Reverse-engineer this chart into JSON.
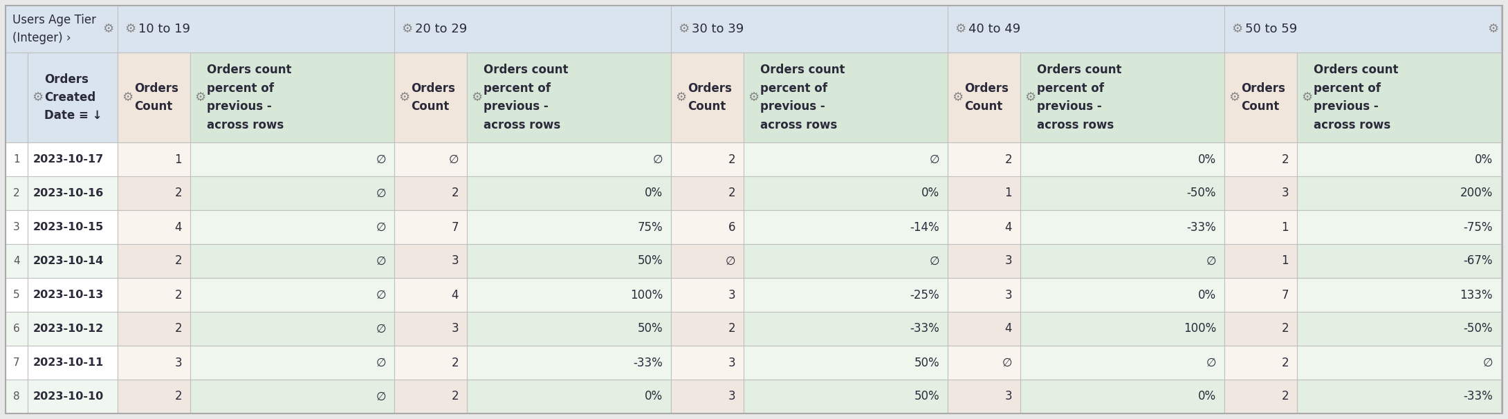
{
  "title_row": {
    "col0_line1": "Users Age Tier",
    "col0_line2": "(Integer) ›",
    "groups": [
      "10 to 19",
      "20 to 29",
      "30 to 39",
      "40 to 49",
      "50 to 59"
    ]
  },
  "header_col0": "Orders\nCreated\nDate ↧",
  "rows": [
    [
      1,
      "2023-10-17",
      "1",
      "∅",
      "∅",
      "∅",
      "2",
      "∅",
      "2",
      "0%",
      "2",
      "0%"
    ],
    [
      2,
      "2023-10-16",
      "2",
      "∅",
      "2",
      "0%",
      "2",
      "0%",
      "1",
      "-50%",
      "3",
      "200%"
    ],
    [
      3,
      "2023-10-15",
      "4",
      "∅",
      "7",
      "75%",
      "6",
      "-14%",
      "4",
      "-33%",
      "1",
      "-75%"
    ],
    [
      4,
      "2023-10-14",
      "2",
      "∅",
      "3",
      "50%",
      "∅",
      "∅",
      "3",
      "∅",
      "1",
      "-67%"
    ],
    [
      5,
      "2023-10-13",
      "2",
      "∅",
      "4",
      "100%",
      "3",
      "-25%",
      "3",
      "0%",
      "7",
      "133%"
    ],
    [
      6,
      "2023-10-12",
      "2",
      "∅",
      "3",
      "50%",
      "2",
      "-33%",
      "4",
      "100%",
      "2",
      "-50%"
    ],
    [
      7,
      "2023-10-11",
      "3",
      "∅",
      "2",
      "-33%",
      "3",
      "50%",
      "∅",
      "∅",
      "2",
      "∅"
    ],
    [
      8,
      "2023-10-10",
      "2",
      "∅",
      "2",
      "0%",
      "3",
      "50%",
      "3",
      "0%",
      "2",
      "-33%"
    ]
  ],
  "colors": {
    "title_bg": "#d9e4ef",
    "header_bg": "#d9e4ef",
    "header_count_bg": "#f0e6dc",
    "header_pct_bg": "#d8e8d8",
    "data_white": "#ffffff",
    "data_light_green": "#f0f7f0",
    "data_count_white": "#faf4ee",
    "data_count_green": "#f0e8e0",
    "data_pct_white": "#eef6ee",
    "data_pct_green": "#e2efe2",
    "border": "#c8c8c8",
    "text_dark": "#2a2a3a",
    "gear_color": "#888888",
    "outer_bg": "#e8e8e8"
  },
  "figsize": [
    21.8,
    6.06
  ],
  "dpi": 100
}
